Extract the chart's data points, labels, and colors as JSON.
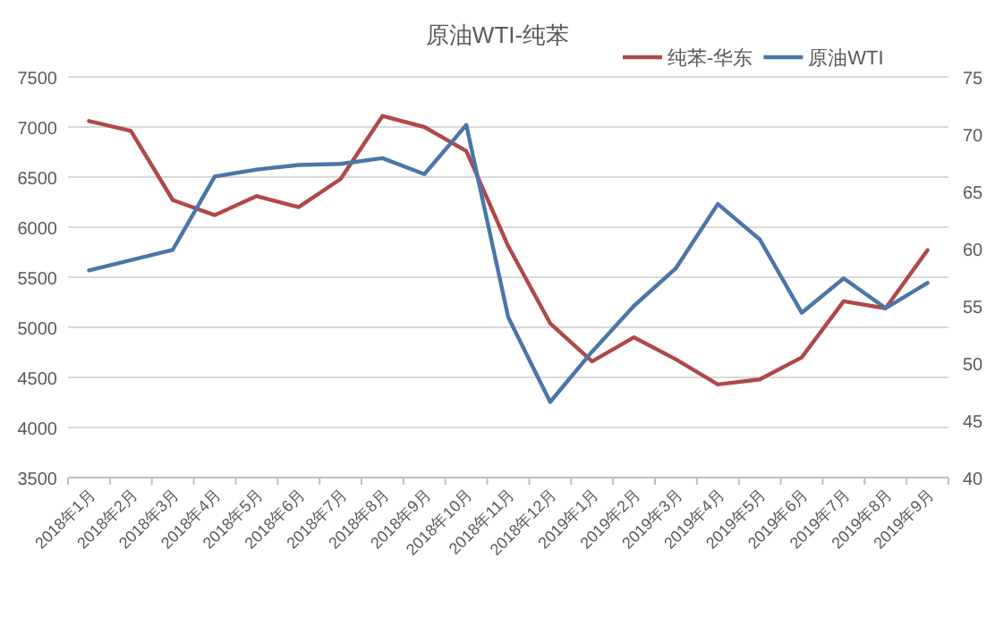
{
  "chart_data": {
    "type": "line",
    "title": "原油WTI-纯苯",
    "categories": [
      "2018年1月",
      "2018年2月",
      "2018年3月",
      "2018年4月",
      "2018年5月",
      "2018年6月",
      "2018年7月",
      "2018年8月",
      "2018年9月",
      "2018年10月",
      "2018年11月",
      "2018年12月",
      "2019年1月",
      "2019年2月",
      "2019年3月",
      "2019年4月",
      "2019年5月",
      "2019年6月",
      "2019年7月",
      "2019年8月",
      "2019年9月"
    ],
    "series": [
      {
        "name": "纯苯-华东",
        "color": "#b0484a",
        "values": [
          7060,
          6960,
          6270,
          6120,
          6310,
          6200,
          6480,
          7110,
          7000,
          6760,
          5810,
          5040,
          4660,
          4900,
          4680,
          4430,
          4480,
          4700,
          5260,
          5190,
          5770
        ]
      },
      {
        "name": "原油WTI",
        "color": "#4a76a8",
        "axis": "y2",
        "values": [
          58.1,
          59.0,
          59.9,
          66.3,
          66.9,
          67.3,
          67.4,
          67.9,
          66.5,
          70.8,
          54.0,
          46.6,
          51.0,
          55.0,
          58.3,
          63.9,
          60.8,
          54.4,
          57.4,
          54.8,
          57.0
        ]
      }
    ],
    "ylim": [
      3500,
      7500
    ],
    "yticks": [
      3500,
      4000,
      4500,
      5000,
      5500,
      6000,
      6500,
      7000,
      7500
    ],
    "y2lim": [
      40,
      75
    ],
    "y2ticks": [
      40,
      45,
      50,
      55,
      60,
      65,
      70,
      75
    ],
    "grid": "y",
    "legend": "top right"
  }
}
